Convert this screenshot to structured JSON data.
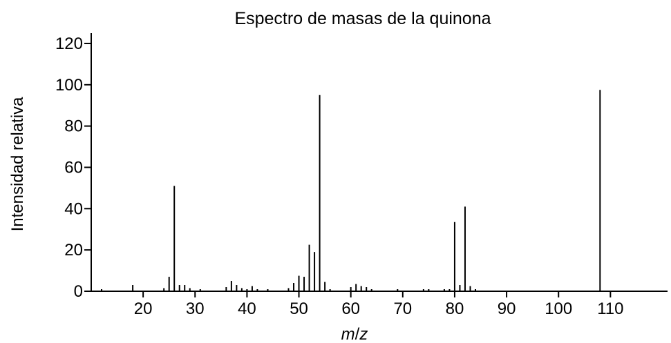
{
  "chart_data": {
    "type": "bar",
    "title": "Espectro de masas de la quinona",
    "xlabel": "m/z",
    "ylabel": "Intensidad relativa",
    "xlim": [
      10,
      121
    ],
    "ylim": [
      0,
      125
    ],
    "xticks": [
      20,
      30,
      40,
      50,
      60,
      70,
      80,
      90,
      100,
      110
    ],
    "yticks": [
      0,
      20,
      40,
      60,
      80,
      100,
      120
    ],
    "grid": false,
    "legend": "none",
    "bar_color": "#000000",
    "x": [
      12,
      18,
      24,
      25,
      26,
      27,
      28,
      29,
      31,
      36,
      37,
      38,
      39,
      40,
      41,
      42,
      44,
      48,
      49,
      50,
      51,
      52,
      53,
      54,
      55,
      56,
      60,
      61,
      62,
      63,
      64,
      69,
      74,
      75,
      78,
      79,
      80,
      81,
      82,
      83,
      84,
      108
    ],
    "values": [
      1,
      3,
      1.5,
      7,
      51,
      3,
      3,
      1.5,
      1,
      2,
      5,
      3,
      1.5,
      1,
      2.5,
      1,
      1,
      1.5,
      4,
      7.5,
      7,
      22.5,
      19,
      95,
      4.5,
      1,
      2,
      3.5,
      2.5,
      2,
      1,
      1,
      1,
      1,
      1,
      1,
      33.5,
      3,
      41,
      2.5,
      1,
      97.5
    ]
  }
}
